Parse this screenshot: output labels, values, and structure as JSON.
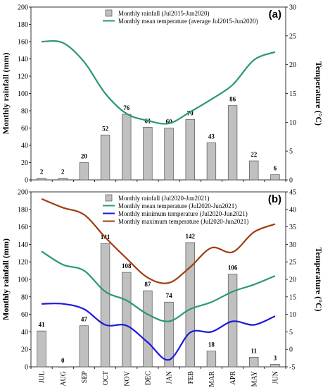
{
  "chart_data": [
    {
      "type": "bar",
      "panel_label": "(a)",
      "categories": [
        "JUL",
        "AUG",
        "SEP",
        "OCT",
        "NOV",
        "DEC",
        "JAN",
        "FEB",
        "MAR",
        "APR",
        "MAY",
        "JUN"
      ],
      "ylabel": "Monthly rainfall (mm)",
      "y2label": "Temperature (°C)",
      "ylim": [
        0,
        200
      ],
      "y2lim": [
        0,
        30
      ],
      "yticks": [
        0,
        20,
        40,
        60,
        80,
        100,
        120,
        140,
        160,
        180,
        200
      ],
      "y2ticks": [
        0,
        5,
        10,
        15,
        20,
        25,
        30
      ],
      "legend_position": "top-center",
      "series": [
        {
          "name": "Monthly rainfall (Jul2015-Jun2020)",
          "kind": "bar",
          "axis": "left",
          "color": "#c0c0c0",
          "values": [
            2,
            2,
            20,
            52,
            76,
            61,
            60,
            70,
            43,
            86,
            22,
            6
          ],
          "labels": [
            "2",
            "2",
            "20",
            "52",
            "76",
            "61",
            "60",
            "70",
            "43",
            "86",
            "22",
            "6"
          ]
        },
        {
          "name": "Monthly mean temperature (average Jul2015-Jun2020)",
          "kind": "line",
          "axis": "right",
          "color": "#2a9a6a",
          "values": [
            24.0,
            23.8,
            20.5,
            15.0,
            11.5,
            10.3,
            9.8,
            11.8,
            14.0,
            16.5,
            20.8,
            22.2
          ]
        }
      ]
    },
    {
      "type": "bar",
      "panel_label": "(b)",
      "categories": [
        "JUL",
        "AUG",
        "SEP",
        "OCT",
        "NOV",
        "DEC",
        "JAN",
        "FEB",
        "MAR",
        "APR",
        "MAY",
        "JUN"
      ],
      "ylabel": "Monthly rainfall (mm)",
      "y2label": "Temperature (°C)",
      "ylim": [
        0,
        200
      ],
      "y2lim": [
        -5,
        45
      ],
      "yticks": [
        0,
        20,
        40,
        60,
        80,
        100,
        120,
        140,
        160,
        180,
        200
      ],
      "y2ticks": [
        -5,
        0,
        5,
        10,
        15,
        20,
        25,
        30,
        35,
        40,
        45
      ],
      "legend_position": "top-center",
      "series": [
        {
          "name": "Monthly rainfall (Jul2020-Jun2021)",
          "kind": "bar",
          "axis": "left",
          "color": "#c0c0c0",
          "values": [
            41,
            0,
            47,
            141,
            108,
            87,
            74,
            142,
            18,
            106,
            11,
            3
          ],
          "labels": [
            "41",
            "0",
            "47",
            "141",
            "108",
            "87",
            "74",
            "142",
            "18",
            "106",
            "11",
            "3"
          ]
        },
        {
          "name": "Monthly mean temperature (Jul2020-Jun2021)",
          "kind": "line",
          "axis": "right",
          "color": "#2a9a6a",
          "values": [
            28.0,
            24.2,
            22.5,
            16.5,
            14.0,
            10.0,
            8.0,
            11.5,
            13.5,
            16.5,
            18.5,
            21.0
          ]
        },
        {
          "name": "Monthly minimum temperature (Jul2020-Jun2021)",
          "kind": "line",
          "axis": "right",
          "color": "#1a1add",
          "values": [
            13.0,
            13.0,
            11.5,
            7.0,
            6.8,
            2.0,
            -3.0,
            4.8,
            5.0,
            8.0,
            7.0,
            9.5
          ]
        },
        {
          "name": "Monthly maximum temperature (Jul2020-Jun2021)",
          "kind": "line",
          "axis": "right",
          "color": "#a23c10",
          "values": [
            43.0,
            40.5,
            38.5,
            32.0,
            26.0,
            20.5,
            19.0,
            23.5,
            29.0,
            27.8,
            33.5,
            35.8
          ]
        }
      ]
    }
  ]
}
